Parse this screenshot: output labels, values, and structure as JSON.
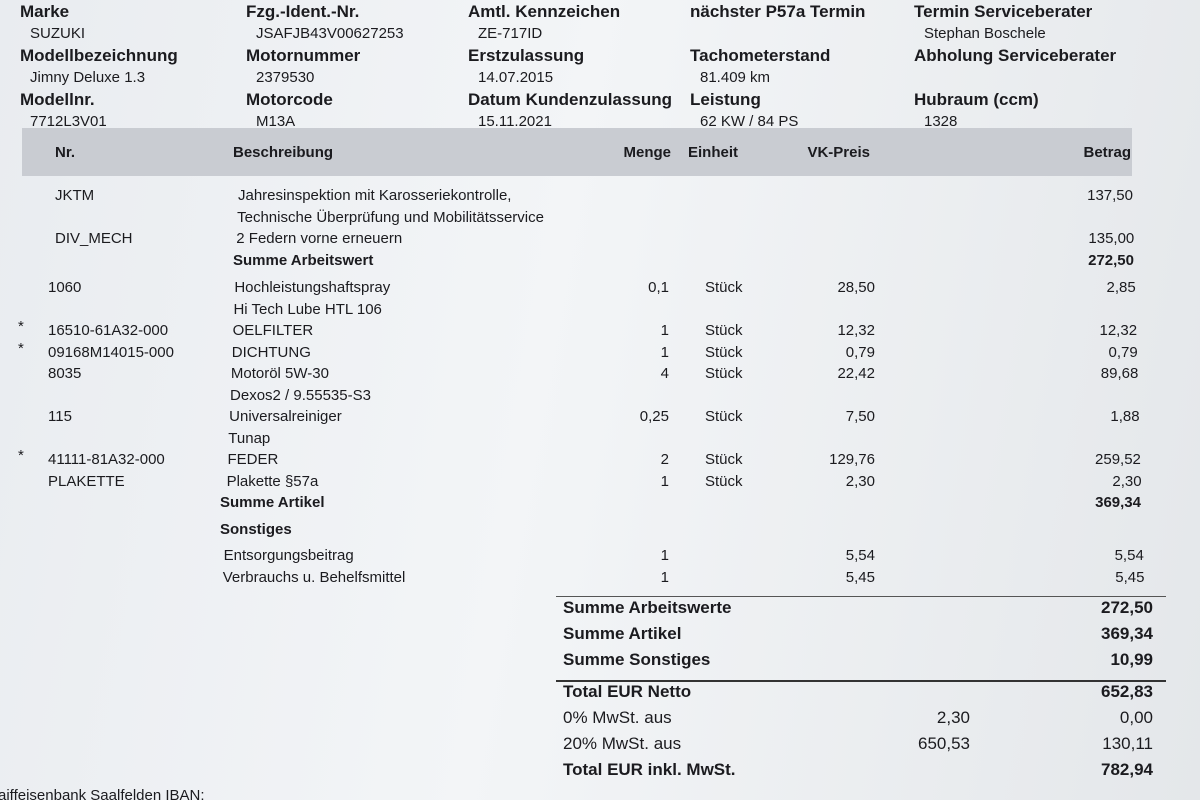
{
  "header": {
    "rows": [
      [
        {
          "label": "Marke",
          "value": "SUZUKI"
        },
        {
          "label": "Fzg.-Ident.-Nr.",
          "value": "JSAFJB43V00627253"
        },
        {
          "label": "Amtl. Kennzeichen",
          "value": "ZE-717ID"
        },
        {
          "label": "nächster P57a Termin"
        },
        {
          "label": "Termin Serviceberater",
          "value": "Stephan Boschele"
        }
      ],
      [
        {
          "label": "Modellbezeichnung",
          "value": "Jimny Deluxe 1.3"
        },
        {
          "label": "Motornummer",
          "value": "2379530"
        },
        {
          "label": "Erstzulassung",
          "value": "14.07.2015"
        },
        {
          "label": "Tachometerstand",
          "value": "81.409 km"
        },
        {
          "label": "Abholung Serviceberater"
        }
      ],
      [
        {
          "label": "Modellnr.",
          "value": "7712L3V01"
        },
        {
          "label": "Motorcode",
          "value": "M13A"
        },
        {
          "label": "Datum Kundenzulassung",
          "value": "15.11.2021"
        },
        {
          "label": "Leistung",
          "value": "62 KW / 84 PS"
        },
        {
          "label": "Hubraum (ccm)",
          "value": "1328"
        }
      ]
    ]
  },
  "table": {
    "columns": [
      "Nr.",
      "Beschreibung",
      "Menge",
      "Einheit",
      "VK-Preis",
      "Betrag"
    ],
    "labour": {
      "items": [
        {
          "nr": "JKTM",
          "desc": [
            "Jahresinspektion mit Karosseriekontrolle,",
            "Technische Überprüfung und Mobilitätsservice"
          ],
          "amount": "137,50"
        },
        {
          "nr": "DIV_MECH",
          "desc": [
            "2 Federn vorne erneuern"
          ],
          "amount": "135,00"
        }
      ],
      "subtotal": {
        "label": "Summe Arbeitswert",
        "amount": "272,50"
      }
    },
    "articles": {
      "items": [
        {
          "nr": "1060",
          "desc": [
            "Hochleistungshaftspray",
            "Hi Tech Lube HTL 106"
          ],
          "qty": "0,1",
          "unit": "Stück",
          "price": "28,50",
          "amount": "2,85"
        },
        {
          "mark": "*",
          "nr": "16510-61A32-000",
          "desc": [
            "OELFILTER"
          ],
          "qty": "1",
          "unit": "Stück",
          "price": "12,32",
          "amount": "12,32"
        },
        {
          "mark": "*",
          "nr": "09168M14015-000",
          "desc": [
            "DICHTUNG"
          ],
          "qty": "1",
          "unit": "Stück",
          "price": "0,79",
          "amount": "0,79"
        },
        {
          "nr": "8035",
          "desc": [
            "Motoröl 5W-30",
            "Dexos2 / 9.55535-S3"
          ],
          "qty": "4",
          "unit": "Stück",
          "price": "22,42",
          "amount": "89,68"
        },
        {
          "nr": "115",
          "desc": [
            "Universalreiniger",
            "Tunap"
          ],
          "qty": "0,25",
          "unit": "Stück",
          "price": "7,50",
          "amount": "1,88"
        },
        {
          "mark": "*",
          "nr": "41111-81A32-000",
          "desc": [
            "FEDER"
          ],
          "qty": "2",
          "unit": "Stück",
          "price": "129,76",
          "amount": "259,52"
        },
        {
          "nr": "PLAKETTE",
          "desc": [
            "Plakette §57a"
          ],
          "qty": "1",
          "unit": "Stück",
          "price": "2,30",
          "amount": "2,30"
        }
      ],
      "subtotal": {
        "label": "Summe Artikel",
        "amount": "369,34"
      }
    },
    "other": {
      "heading": "Sonstiges",
      "items": [
        {
          "desc": [
            "Entsorgungsbeitrag"
          ],
          "qty": "1",
          "price": "5,54",
          "amount": "5,54"
        },
        {
          "desc": [
            "Verbrauchs u. Behelfsmittel"
          ],
          "qty": "1",
          "price": "5,45",
          "amount": "5,45"
        }
      ]
    }
  },
  "totals": [
    {
      "label": "Summe Arbeitswerte",
      "amount": "272,50"
    },
    {
      "label": "Summe Artikel",
      "amount": "369,34"
    },
    {
      "label": "Summe Sonstiges",
      "amount": "10,99"
    },
    {
      "label": "Total EUR Netto",
      "amount": "652,83"
    },
    {
      "label": "0% MwSt. aus",
      "base": "2,30",
      "amount": "0,00"
    },
    {
      "label": "20% MwSt. aus",
      "base": "650,53",
      "amount": "130,11"
    },
    {
      "label": "Total EUR inkl. MwSt.",
      "amount": "782,94"
    }
  ],
  "footer": "aiffeisenbank Saalfelden IBAN:"
}
